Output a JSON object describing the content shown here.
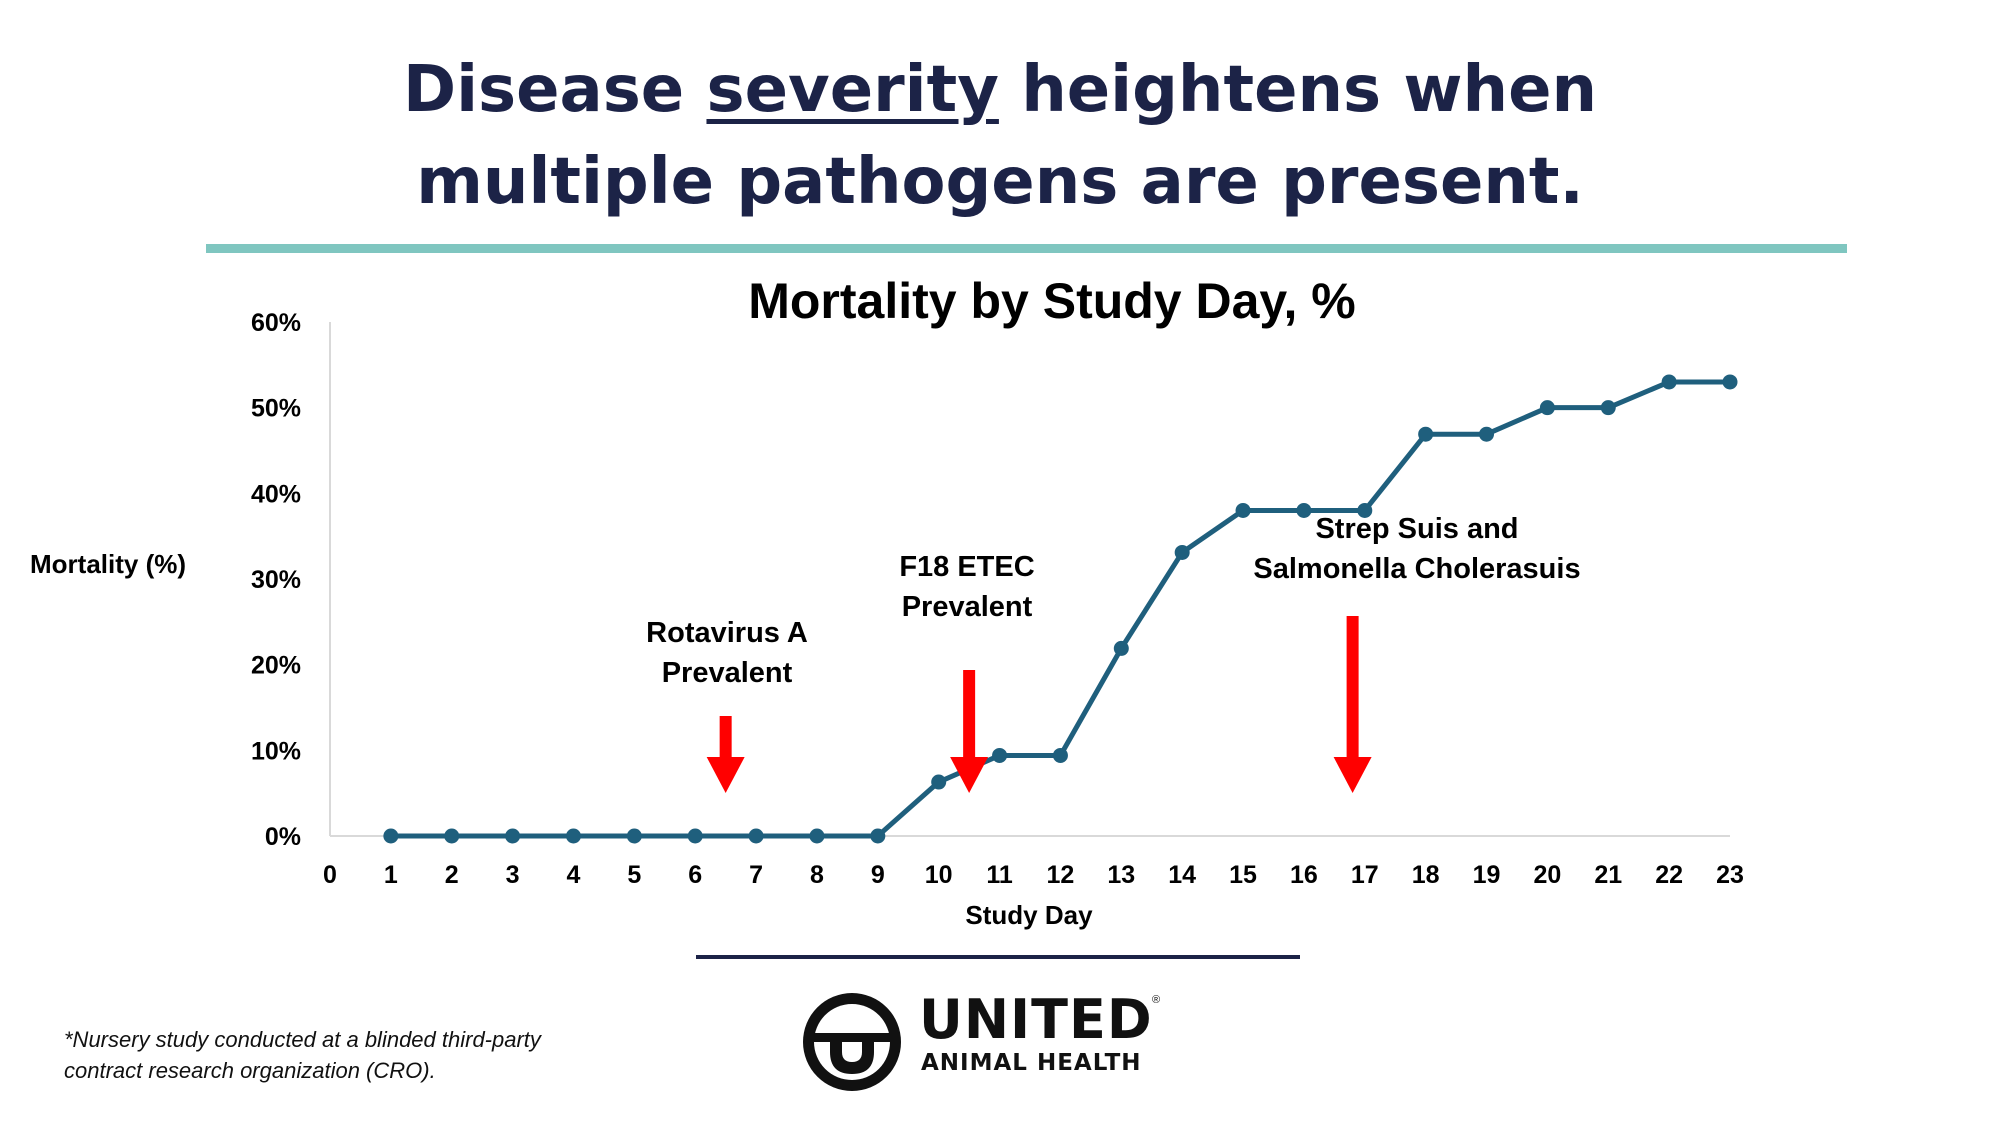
{
  "headline": {
    "pre": "Disease ",
    "emphasis": "severity",
    "post": " heightens when",
    "line2": "multiple pathogens are present."
  },
  "chart_data": {
    "type": "line",
    "title": "Mortality by Study Day, %",
    "xlabel": "Study Day",
    "ylabel": "Mortality (%)",
    "categories": [
      "0",
      "1",
      "2",
      "3",
      "4",
      "5",
      "6",
      "7",
      "8",
      "9",
      "10",
      "11",
      "12",
      "13",
      "14",
      "15",
      "16",
      "17",
      "18",
      "19",
      "20",
      "21",
      "22",
      "23"
    ],
    "x": [
      1,
      2,
      3,
      4,
      5,
      6,
      7,
      8,
      9,
      10,
      11,
      12,
      13,
      14,
      15,
      16,
      17,
      18,
      19,
      20,
      21,
      22,
      23
    ],
    "values": [
      0,
      0,
      0,
      0,
      0,
      0,
      0,
      0,
      0,
      6.3,
      9.4,
      9.4,
      21.9,
      33.1,
      38,
      38,
      38,
      46.9,
      46.9,
      50,
      50,
      53,
      53
    ],
    "xlim": [
      0,
      23
    ],
    "ylim": [
      0,
      60
    ],
    "yticks": [
      "0%",
      "10%",
      "20%",
      "30%",
      "40%",
      "50%",
      "60%"
    ],
    "line_color": "#1f5f7d",
    "grid": false,
    "annotations": [
      {
        "lines": [
          "Rotavirus A",
          "Prevalent"
        ],
        "arrow_day": 6.5,
        "color": "#ff0000"
      },
      {
        "lines": [
          "F18 ETEC",
          "Prevalent"
        ],
        "arrow_day": 10.5,
        "color": "#ff0000"
      },
      {
        "lines": [
          "Strep Suis and",
          "Salmonella Cholerasuis"
        ],
        "arrow_day": 16.8,
        "color": "#ff0000"
      }
    ]
  },
  "footnote": {
    "line1": "*Nursery study conducted at a blinded third-party",
    "line2": "contract research organization (CRO)."
  },
  "logo": {
    "name": "UNITED",
    "registered": "®",
    "subtitle": "ANIMAL HEALTH"
  },
  "colors": {
    "navy": "#1c2347",
    "teal_rule": "#7fc6c0",
    "series": "#1f5f7d",
    "arrow": "#ff0000"
  }
}
